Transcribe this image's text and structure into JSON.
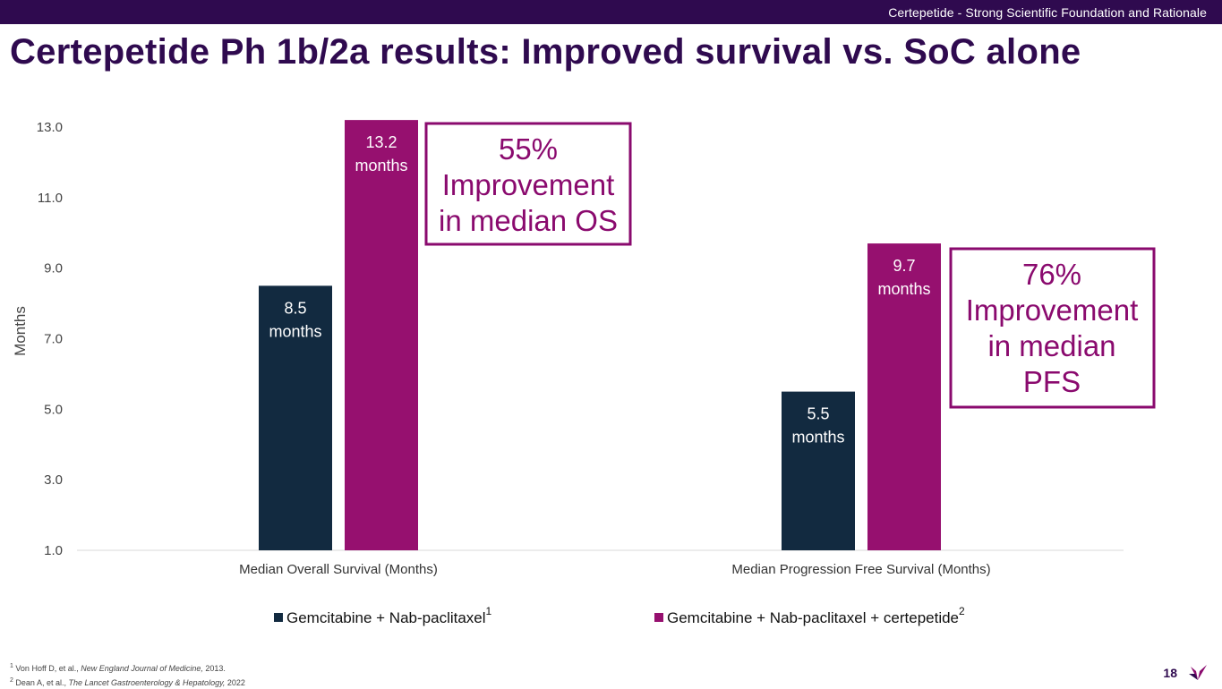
{
  "header": {
    "topbar_text": "Certepetide - Strong Scientific Foundation and Rationale",
    "title": "Certepetide Ph 1b/2a results: Improved survival vs. SoC alone"
  },
  "colors": {
    "brand_dark": "#2f0a4f",
    "series_navy": "#122a40",
    "series_magenta": "#96106f",
    "callout": "#8a0a6e"
  },
  "chart_data": {
    "type": "bar",
    "ylabel": "Months",
    "ylim": [
      1.0,
      13.0
    ],
    "yticks": [
      "1.0",
      "3.0",
      "5.0",
      "7.0",
      "9.0",
      "11.0",
      "13.0"
    ],
    "ytick_values": [
      1,
      3,
      5,
      7,
      9,
      11,
      13
    ],
    "categories": [
      "Median Overall Survival (Months)",
      "Median Progression Free Survival (Months)"
    ],
    "series": [
      {
        "name": "Gemcitabine + Nab-paclitaxel",
        "sup": "1",
        "values": [
          8.5,
          5.5
        ],
        "labels": [
          [
            "8.5",
            "months"
          ],
          [
            "5.5",
            "months"
          ]
        ]
      },
      {
        "name": "Gemcitabine + Nab-paclitaxel + certepetide",
        "sup": "2",
        "values": [
          13.2,
          9.7
        ],
        "labels": [
          [
            "13.2",
            "months"
          ],
          [
            "9.7",
            "months"
          ]
        ]
      }
    ],
    "annotations": [
      {
        "lines": [
          "55%",
          "Improvement",
          "in median OS"
        ]
      },
      {
        "lines": [
          "76%",
          "Improvement",
          "in median",
          "PFS"
        ]
      }
    ],
    "legend_position": "bottom"
  },
  "footnotes": {
    "note1_num": "1",
    "note1_text": "Von Hoff D, et al., ",
    "note1_journal": "New England Journal of Medicine,",
    "note1_year": " 2013.",
    "note2_num": "2",
    "note2_text": "Dean A, et al., ",
    "note2_journal": "The Lancet Gastroenterology & Hepatology,",
    "note2_year": " 2022"
  },
  "page_number": "18",
  "logo": {
    "icon": "brand-logo-icon"
  }
}
